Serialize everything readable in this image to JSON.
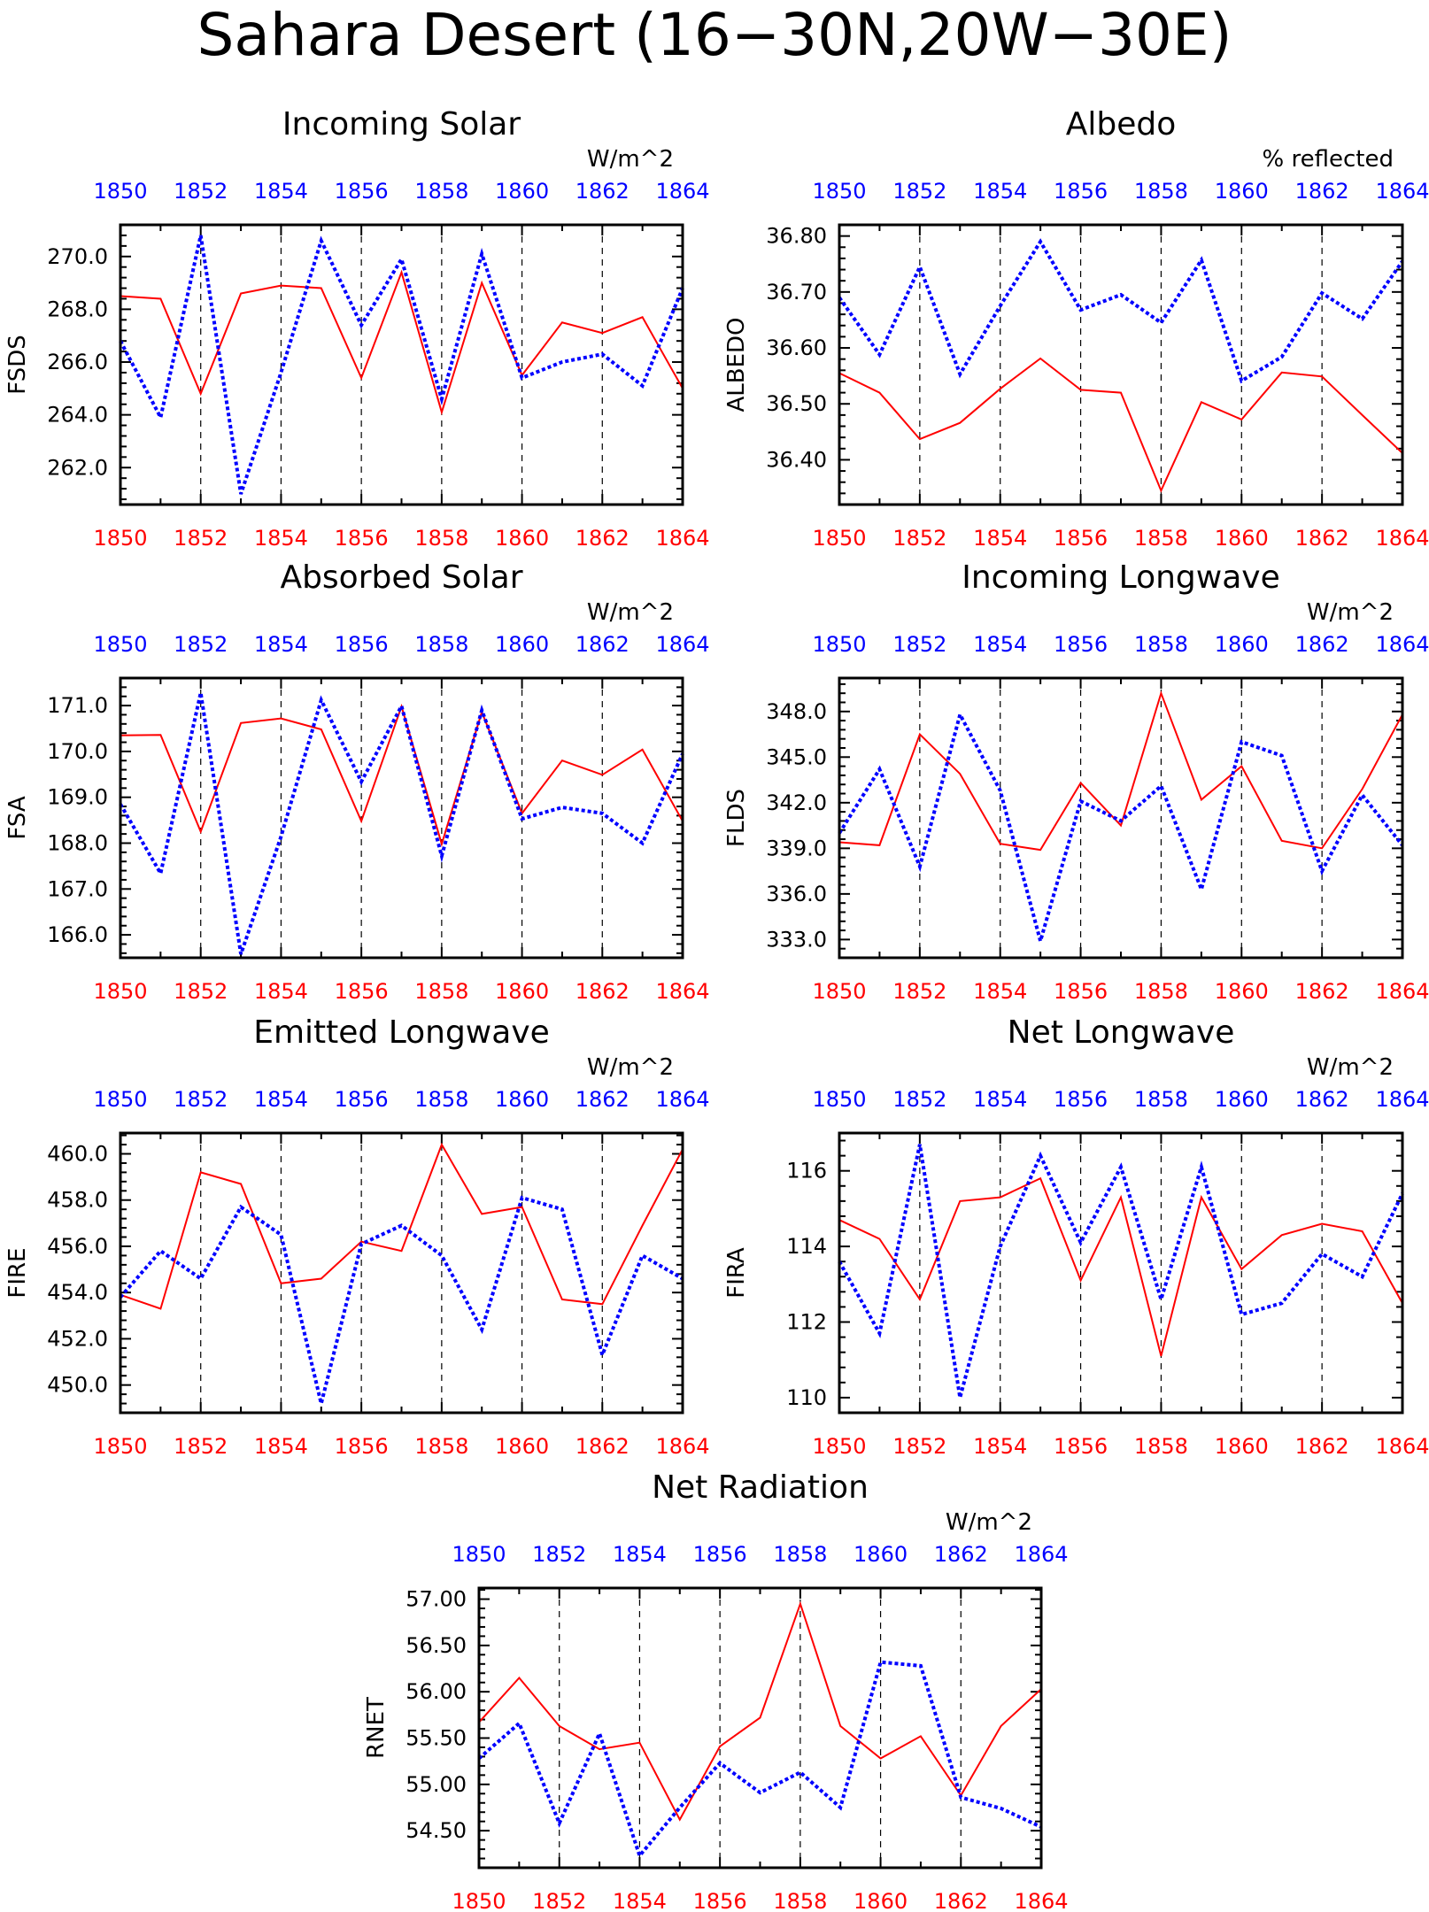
{
  "title": "Sahara Desert (16−30N,20W−30E)",
  "colors": {
    "red_series": "#ff0000",
    "blue_series": "#0000ff",
    "bottom_axis_labels": "#ff0000",
    "top_axis_labels": "#0000ff",
    "axes": "#000000"
  },
  "chart_data": [
    {
      "id": "fsds",
      "type": "line",
      "title": "Incoming Solar",
      "ylabel": "FSDS",
      "units": "W/m^2",
      "x": [
        1850,
        1851,
        1852,
        1853,
        1854,
        1855,
        1856,
        1857,
        1858,
        1859,
        1860,
        1861,
        1862,
        1863,
        1864
      ],
      "xlim": [
        1850,
        1864
      ],
      "ylim": [
        260.6,
        271.2
      ],
      "yticks": [
        262.0,
        264.0,
        266.0,
        268.0,
        270.0
      ],
      "tick_decimals": 1,
      "xticks": [
        1850,
        1852,
        1854,
        1856,
        1858,
        1860,
        1862,
        1864
      ],
      "grid_x": true,
      "series": [
        {
          "style": "solid",
          "color": "red",
          "values": [
            268.5,
            268.4,
            264.8,
            268.6,
            268.9,
            268.8,
            265.4,
            269.4,
            264.1,
            269.0,
            265.5,
            267.5,
            267.1,
            267.7,
            265.0
          ]
        },
        {
          "style": "dotted",
          "color": "blue",
          "values": [
            266.8,
            263.9,
            270.8,
            261.0,
            265.6,
            270.6,
            267.4,
            269.9,
            264.6,
            270.1,
            265.4,
            266.0,
            266.3,
            265.1,
            268.8
          ]
        }
      ]
    },
    {
      "id": "albedo",
      "type": "line",
      "title": "Albedo",
      "ylabel": "ALBEDO",
      "units": "% reflected",
      "x": [
        1850,
        1851,
        1852,
        1853,
        1854,
        1855,
        1856,
        1857,
        1858,
        1859,
        1860,
        1861,
        1862,
        1863,
        1864
      ],
      "xlim": [
        1850,
        1864
      ],
      "ylim": [
        36.32,
        36.82
      ],
      "yticks": [
        36.4,
        36.5,
        36.6,
        36.7,
        36.8
      ],
      "tick_decimals": 2,
      "xticks": [
        1850,
        1852,
        1854,
        1856,
        1858,
        1860,
        1862,
        1864
      ],
      "grid_x": true,
      "series": [
        {
          "style": "solid",
          "color": "red",
          "values": [
            36.555,
            36.52,
            36.437,
            36.466,
            36.527,
            36.581,
            36.525,
            36.52,
            36.345,
            36.503,
            36.472,
            36.556,
            36.549,
            36.48,
            36.412
          ]
        },
        {
          "style": "dotted",
          "color": "blue",
          "values": [
            36.69,
            36.588,
            36.745,
            36.553,
            36.675,
            36.79,
            36.668,
            36.695,
            36.645,
            36.757,
            36.541,
            36.584,
            36.698,
            36.652,
            36.755
          ]
        }
      ]
    },
    {
      "id": "fsa",
      "type": "line",
      "title": "Absorbed Solar",
      "ylabel": "FSA",
      "units": "W/m^2",
      "x": [
        1850,
        1851,
        1852,
        1853,
        1854,
        1855,
        1856,
        1857,
        1858,
        1859,
        1860,
        1861,
        1862,
        1863,
        1864
      ],
      "xlim": [
        1850,
        1864
      ],
      "ylim": [
        165.5,
        171.6
      ],
      "yticks": [
        166.0,
        167.0,
        168.0,
        169.0,
        170.0,
        171.0
      ],
      "tick_decimals": 1,
      "xticks": [
        1850,
        1852,
        1854,
        1856,
        1858,
        1860,
        1862,
        1864
      ],
      "grid_x": true,
      "series": [
        {
          "style": "solid",
          "color": "red",
          "values": [
            170.35,
            170.36,
            168.25,
            170.62,
            170.72,
            170.48,
            168.48,
            170.98,
            167.98,
            170.86,
            168.65,
            169.8,
            169.49,
            170.04,
            168.48
          ]
        },
        {
          "style": "dotted",
          "color": "blue",
          "values": [
            168.85,
            167.34,
            171.28,
            165.58,
            168.14,
            171.12,
            169.34,
            170.99,
            167.72,
            170.9,
            168.53,
            168.78,
            168.65,
            168.0,
            169.95
          ]
        }
      ]
    },
    {
      "id": "flds",
      "type": "line",
      "title": "Incoming Longwave",
      "ylabel": "FLDS",
      "units": "W/m^2",
      "x": [
        1850,
        1851,
        1852,
        1853,
        1854,
        1855,
        1856,
        1857,
        1858,
        1859,
        1860,
        1861,
        1862,
        1863,
        1864
      ],
      "xlim": [
        1850,
        1864
      ],
      "ylim": [
        331.8,
        350.2
      ],
      "yticks": [
        333.0,
        336.0,
        339.0,
        342.0,
        345.0,
        348.0
      ],
      "tick_decimals": 1,
      "xticks": [
        1850,
        1852,
        1854,
        1856,
        1858,
        1860,
        1862,
        1864
      ],
      "grid_x": true,
      "series": [
        {
          "style": "solid",
          "color": "red",
          "values": [
            339.4,
            339.2,
            346.5,
            343.9,
            339.3,
            338.9,
            343.3,
            340.5,
            349.2,
            342.2,
            344.4,
            339.5,
            339.0,
            342.9,
            347.8
          ]
        },
        {
          "style": "dotted",
          "color": "blue",
          "values": [
            340.0,
            344.2,
            337.8,
            347.8,
            342.8,
            332.9,
            342.1,
            340.8,
            343.1,
            336.3,
            346.0,
            345.1,
            337.5,
            342.5,
            339.2
          ]
        }
      ]
    },
    {
      "id": "fire",
      "type": "line",
      "title": "Emitted Longwave",
      "ylabel": "FIRE",
      "units": "W/m^2",
      "x": [
        1850,
        1851,
        1852,
        1853,
        1854,
        1855,
        1856,
        1857,
        1858,
        1859,
        1860,
        1861,
        1862,
        1863,
        1864
      ],
      "xlim": [
        1850,
        1864
      ],
      "ylim": [
        448.8,
        460.9
      ],
      "yticks": [
        450.0,
        452.0,
        454.0,
        456.0,
        458.0,
        460.0
      ],
      "tick_decimals": 1,
      "xticks": [
        1850,
        1852,
        1854,
        1856,
        1858,
        1860,
        1862,
        1864
      ],
      "grid_x": true,
      "series": [
        {
          "style": "solid",
          "color": "red",
          "values": [
            453.9,
            453.3,
            459.2,
            458.7,
            454.4,
            454.6,
            456.2,
            455.8,
            460.4,
            457.4,
            457.7,
            453.7,
            453.5,
            456.9,
            460.2
          ]
        },
        {
          "style": "dotted",
          "color": "blue",
          "values": [
            453.8,
            455.8,
            454.6,
            457.7,
            456.5,
            449.2,
            456.1,
            456.9,
            455.6,
            452.4,
            458.1,
            457.6,
            451.3,
            455.6,
            454.6
          ]
        }
      ]
    },
    {
      "id": "fira",
      "type": "line",
      "title": "Net Longwave",
      "ylabel": "FIRA",
      "units": "W/m^2",
      "x": [
        1850,
        1851,
        1852,
        1853,
        1854,
        1855,
        1856,
        1857,
        1858,
        1859,
        1860,
        1861,
        1862,
        1863,
        1864
      ],
      "xlim": [
        1850,
        1864
      ],
      "ylim": [
        109.6,
        117.0
      ],
      "yticks": [
        110,
        112,
        114,
        116
      ],
      "tick_decimals": 0,
      "xticks": [
        1850,
        1852,
        1854,
        1856,
        1858,
        1860,
        1862,
        1864
      ],
      "grid_x": true,
      "series": [
        {
          "style": "solid",
          "color": "red",
          "values": [
            114.7,
            114.2,
            112.6,
            115.2,
            115.3,
            115.8,
            113.1,
            115.3,
            111.1,
            115.3,
            113.4,
            114.3,
            114.6,
            114.4,
            112.5
          ]
        },
        {
          "style": "dotted",
          "color": "blue",
          "values": [
            113.6,
            111.7,
            116.7,
            110.0,
            114.0,
            116.4,
            114.1,
            116.1,
            112.6,
            116.1,
            112.2,
            112.5,
            113.8,
            113.2,
            115.4
          ]
        }
      ]
    },
    {
      "id": "rnet",
      "type": "line",
      "title": "Net Radiation",
      "ylabel": "RNET",
      "units": "W/m^2",
      "x": [
        1850,
        1851,
        1852,
        1853,
        1854,
        1855,
        1856,
        1857,
        1858,
        1859,
        1860,
        1861,
        1862,
        1863,
        1864
      ],
      "xlim": [
        1850,
        1864
      ],
      "ylim": [
        54.1,
        57.12
      ],
      "yticks": [
        54.5,
        55.0,
        55.5,
        56.0,
        56.5,
        57.0
      ],
      "tick_decimals": 2,
      "xticks": [
        1850,
        1852,
        1854,
        1856,
        1858,
        1860,
        1862,
        1864
      ],
      "grid_x": true,
      "series": [
        {
          "style": "solid",
          "color": "red",
          "values": [
            55.67,
            56.15,
            55.63,
            55.38,
            55.45,
            54.62,
            55.41,
            55.72,
            56.95,
            55.63,
            55.28,
            55.52,
            54.88,
            55.63,
            56.03
          ]
        },
        {
          "style": "dotted",
          "color": "blue",
          "values": [
            55.28,
            55.66,
            54.58,
            55.55,
            54.23,
            54.75,
            55.23,
            54.91,
            55.13,
            54.75,
            56.32,
            56.28,
            54.86,
            54.74,
            54.54
          ]
        }
      ]
    }
  ]
}
